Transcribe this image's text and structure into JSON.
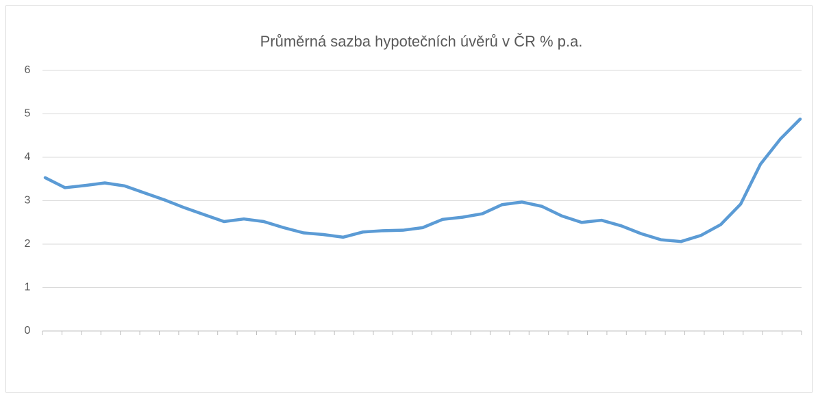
{
  "chart_data": {
    "type": "line",
    "title": "Průměrná sazba hypotečních úvěrů v ČR % p.a.",
    "categories": [
      null,
      null,
      null,
      null,
      null,
      null,
      null,
      null,
      null,
      null,
      null,
      null,
      null,
      null,
      null,
      null,
      null,
      null,
      null,
      null,
      null,
      null,
      null,
      null,
      null,
      null,
      null,
      null,
      null,
      null,
      null,
      null,
      null,
      null,
      null,
      null,
      null,
      null,
      null
    ],
    "series": [
      {
        "name": "Průměrná sazba",
        "color": "#5b9bd5",
        "values": [
          3.53,
          3.3,
          3.35,
          3.41,
          3.34,
          3.18,
          3.02,
          2.84,
          2.68,
          2.52,
          2.58,
          2.52,
          2.38,
          2.26,
          2.22,
          2.16,
          2.28,
          2.31,
          2.32,
          2.38,
          2.57,
          2.62,
          2.7,
          2.91,
          2.97,
          2.87,
          2.65,
          2.5,
          2.55,
          2.42,
          2.24,
          2.1,
          2.06,
          2.2,
          2.45,
          2.92,
          3.84,
          4.42,
          4.88
        ]
      }
    ],
    "ylim": [
      0,
      6
    ],
    "yticks": [
      0,
      1,
      2,
      3,
      4,
      5,
      6
    ],
    "grid": true
  }
}
